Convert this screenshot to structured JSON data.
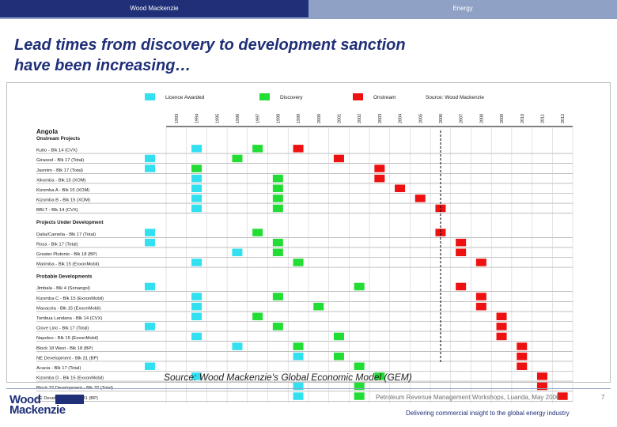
{
  "header": {
    "left_label": "Wood Mackenzie",
    "right_label": "Energy",
    "left_color": "#1f2f78",
    "right_color": "#8fa2c5"
  },
  "title": {
    "line1": "Lead times from discovery to development sanction",
    "line2": "have been increasing…"
  },
  "legend": {
    "licence": "Licence Awarded",
    "discovery": "Discovery",
    "onstream": "Onstream",
    "source": "Source: Wood Mackenzie"
  },
  "colors": {
    "licence": "#33e0f0",
    "discovery": "#22dd33",
    "onstream": "#ee1111"
  },
  "chart_data": {
    "type": "table",
    "years": [
      "1993",
      "1994",
      "1995",
      "1996",
      "1997",
      "1998",
      "1999",
      "2000",
      "2001",
      "2002",
      "2003",
      "2004",
      "2005",
      "2006",
      "2007",
      "2008",
      "2009",
      "2010",
      "2011",
      "2012"
    ],
    "years_numeric": [
      1993,
      1994,
      1995,
      1996,
      1997,
      1998,
      1999,
      2000,
      2001,
      2002,
      2003,
      2004,
      2005,
      2006,
      2007,
      2008,
      2009,
      2010,
      2011,
      2012
    ],
    "country": "Angola",
    "sections": [
      {
        "title": "Onstream Projects",
        "rows": [
          {
            "name": "Kuito - Blk 14 (CVX)",
            "licence": [
              1994
            ],
            "discovery": [
              1997
            ],
            "onstream": [
              1999
            ]
          },
          {
            "name": "Girassol - Blk 17 (Total)",
            "licence": [
              1992
            ],
            "discovery": [
              1996
            ],
            "onstream": [
              2001
            ]
          },
          {
            "name": "Jasmim - Blk 17 (Total)",
            "licence": [
              1992
            ],
            "discovery": [
              1994
            ],
            "onstream": [
              2003
            ]
          },
          {
            "name": "Xikomba - Blk 15 (XOM)",
            "licence": [
              1994
            ],
            "discovery": [
              1998
            ],
            "onstream": [
              2003
            ]
          },
          {
            "name": "Kizomba A - Blk 15 (XOM)",
            "licence": [
              1994
            ],
            "discovery": [
              1998
            ],
            "onstream": [
              2004
            ]
          },
          {
            "name": "Kizomba B - Blk 15 (XOM)",
            "licence": [
              1994
            ],
            "discovery": [
              1998
            ],
            "onstream": [
              2005
            ]
          },
          {
            "name": "BBLT - Blk 14 (CVX)",
            "licence": [
              1994
            ],
            "discovery": [
              1998
            ],
            "onstream": [
              2006
            ]
          }
        ]
      },
      {
        "title": "Projects Under Development",
        "rows": [
          {
            "name": "Dalia/Camelia - Blk 17 (Total)",
            "licence": [
              1992
            ],
            "discovery": [
              1997
            ],
            "onstream": [
              2006
            ]
          },
          {
            "name": "Rosa - Blk 17 (Total)",
            "licence": [
              1992
            ],
            "discovery": [
              1998
            ],
            "onstream": [
              2007
            ]
          },
          {
            "name": "Greater Plutonio - Blk 18 (BP)",
            "licence": [
              1996
            ],
            "discovery": [
              1998
            ],
            "onstream": [
              2007
            ]
          },
          {
            "name": "Marimba - Blk 15 (ExxonMobil)",
            "licence": [
              1994
            ],
            "discovery": [
              1999
            ],
            "onstream": [
              2008
            ]
          }
        ]
      },
      {
        "title": "Probable Developments",
        "rows": [
          {
            "name": "Jimbala - Blk 4 (Sonangol)",
            "licence": [
              1992
            ],
            "discovery": [
              2002
            ],
            "onstream": [
              2007
            ]
          },
          {
            "name": "Kizomba C - Blk 15 (ExxonMobil)",
            "licence": [
              1994
            ],
            "discovery": [
              1998
            ],
            "onstream": [
              2008
            ]
          },
          {
            "name": "Mavacola - Blk 15 (ExxonMobil)",
            "licence": [
              1994
            ],
            "discovery": [
              2000
            ],
            "onstream": [
              2008
            ]
          },
          {
            "name": "Tombua Landana - Blk 14 (CVX)",
            "licence": [
              1994
            ],
            "discovery": [
              1997
            ],
            "onstream": [
              2009
            ]
          },
          {
            "name": "Clove Lirio - Blk 17 (Total)",
            "licence": [
              1992
            ],
            "discovery": [
              1998
            ],
            "onstream": [
              2009
            ]
          },
          {
            "name": "Napoleo - Blk 15 (ExxonMobil)",
            "licence": [
              1994
            ],
            "discovery": [
              2001
            ],
            "onstream": [
              2009
            ]
          },
          {
            "name": "Block 18 West - Blk 18 (BP)",
            "licence": [
              1996
            ],
            "discovery": [
              1999
            ],
            "onstream": [
              2010
            ]
          },
          {
            "name": "NE Development - Blk 31 (BP)",
            "licence": [
              1999
            ],
            "discovery": [
              2001
            ],
            "onstream": [
              2010
            ]
          },
          {
            "name": "Acacia - Blk 17 (Total)",
            "licence": [
              1992
            ],
            "discovery": [
              2002
            ],
            "onstream": [
              2010
            ]
          },
          {
            "name": "Kizomba D - Blk 15 (ExxonMobil)",
            "licence": [
              1994
            ],
            "discovery": [
              2003
            ],
            "onstream": [
              2011
            ]
          },
          {
            "name": "Block 32 Development - Blk 32 (Total)",
            "licence": [
              1999
            ],
            "discovery": [
              2002
            ],
            "onstream": [
              2011
            ]
          },
          {
            "name": "SE Development - Blk 31 (BP)",
            "licence": [
              1999
            ],
            "discovery": [
              2002
            ],
            "onstream": [
              2012
            ]
          }
        ]
      }
    ],
    "marker_year": 2006,
    "grid": true
  },
  "source_note": "Source: Wood Mackenzie's Global Economic Model (GEM)",
  "footer": {
    "logo_line1": "Wood",
    "logo_line2": "Mackenzie",
    "center": "Petroleum Revenue Management Workshops, Luanda, May 2006",
    "page": "7",
    "tagline": "Delivering commercial insight to the global energy industry"
  }
}
